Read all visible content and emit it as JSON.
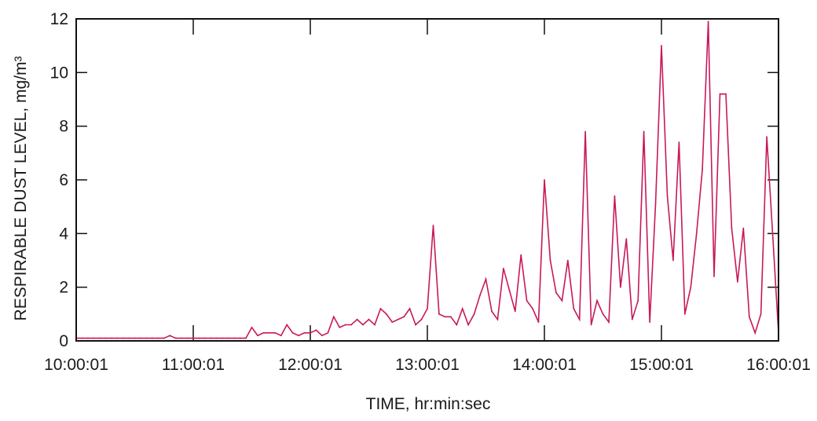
{
  "chart_data": {
    "type": "line",
    "title": "",
    "xlabel": "TIME, hr:min:sec",
    "ylabel": "RESPIRABLE DUST LEVEL, mg/m³",
    "ylim": [
      0,
      12
    ],
    "xlim_hours": [
      10,
      16
    ],
    "x_ticks": [
      {
        "label": "10:00:01",
        "hour": 10
      },
      {
        "label": "11:00:01",
        "hour": 11
      },
      {
        "label": "12:00:01",
        "hour": 12
      },
      {
        "label": "13:00:01",
        "hour": 13
      },
      {
        "label": "14:00:01",
        "hour": 14
      },
      {
        "label": "15:00:01",
        "hour": 15
      },
      {
        "label": "16:00:01",
        "hour": 16
      }
    ],
    "y_ticks": [
      0,
      2,
      4,
      6,
      8,
      10,
      12
    ],
    "grid": false,
    "legend": "none",
    "series": [
      {
        "color": "#c8185a",
        "x": [
          10.0,
          10.05,
          10.1,
          10.15,
          10.2,
          10.25,
          10.3,
          10.35,
          10.4,
          10.45,
          10.5,
          10.55,
          10.6,
          10.65,
          10.7,
          10.75,
          10.8,
          10.85,
          10.9,
          10.95,
          11.0,
          11.05,
          11.1,
          11.15,
          11.2,
          11.25,
          11.3,
          11.35,
          11.4,
          11.45,
          11.5,
          11.55,
          11.6,
          11.65,
          11.7,
          11.75,
          11.8,
          11.85,
          11.9,
          11.95,
          12.0,
          12.05,
          12.1,
          12.15,
          12.2,
          12.25,
          12.3,
          12.35,
          12.4,
          12.45,
          12.5,
          12.55,
          12.6,
          12.65,
          12.7,
          12.75,
          12.8,
          12.85,
          12.9,
          12.95,
          13.0,
          13.05,
          13.1,
          13.15,
          13.2,
          13.25,
          13.3,
          13.35,
          13.4,
          13.45,
          13.5,
          13.55,
          13.6,
          13.65,
          13.7,
          13.75,
          13.8,
          13.85,
          13.9,
          13.95,
          14.0,
          14.05,
          14.1,
          14.15,
          14.2,
          14.25,
          14.3,
          14.35,
          14.4,
          14.45,
          14.5,
          14.55,
          14.6,
          14.65,
          14.7,
          14.75,
          14.8,
          14.85,
          14.9,
          14.95,
          15.0,
          15.05,
          15.1,
          15.15,
          15.2,
          15.25,
          15.3,
          15.35,
          15.4,
          15.45,
          15.5,
          15.55,
          15.6,
          15.65,
          15.7,
          15.75,
          15.8,
          15.85,
          15.9,
          15.95,
          16.0
        ],
        "y": [
          0.1,
          0.1,
          0.1,
          0.1,
          0.1,
          0.1,
          0.1,
          0.1,
          0.1,
          0.1,
          0.1,
          0.1,
          0.1,
          0.1,
          0.1,
          0.1,
          0.2,
          0.1,
          0.1,
          0.1,
          0.1,
          0.1,
          0.1,
          0.1,
          0.1,
          0.1,
          0.1,
          0.1,
          0.1,
          0.1,
          0.5,
          0.2,
          0.3,
          0.3,
          0.3,
          0.2,
          0.6,
          0.3,
          0.2,
          0.3,
          0.3,
          0.4,
          0.2,
          0.3,
          0.9,
          0.5,
          0.6,
          0.6,
          0.8,
          0.6,
          0.8,
          0.6,
          1.2,
          1.0,
          0.7,
          0.8,
          0.9,
          1.2,
          0.6,
          0.8,
          1.2,
          4.3,
          1.0,
          0.9,
          0.9,
          0.6,
          1.2,
          0.6,
          1.0,
          1.7,
          2.3,
          1.1,
          0.8,
          2.7,
          1.9,
          1.1,
          3.2,
          1.5,
          1.2,
          0.7,
          6.0,
          3.0,
          1.8,
          1.5,
          3.0,
          1.2,
          0.8,
          7.8,
          0.6,
          1.5,
          1.0,
          0.7,
          5.4,
          2.0,
          3.8,
          0.8,
          1.5,
          7.8,
          0.7,
          5.1,
          11.0,
          5.4,
          3.0,
          7.4,
          1.0,
          2.0,
          4.0,
          6.4,
          11.9,
          2.4,
          9.2,
          9.2,
          4.2,
          2.2,
          4.2,
          0.9,
          0.3,
          1.0,
          7.6,
          4.0,
          0.3
        ]
      }
    ]
  }
}
